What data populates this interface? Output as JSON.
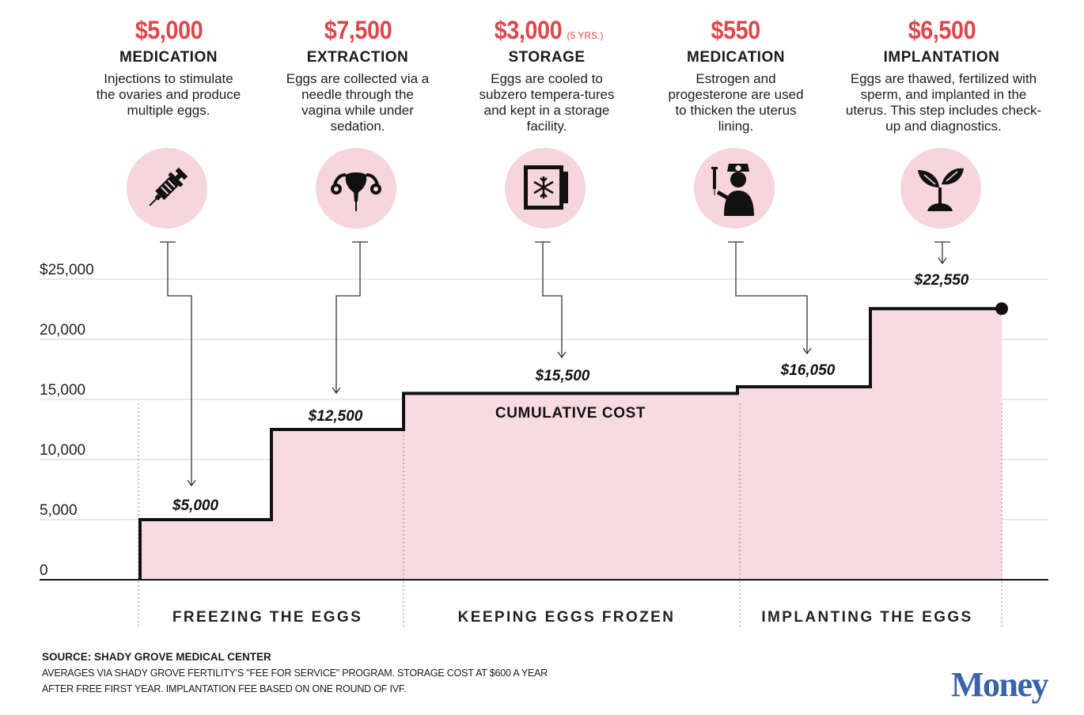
{
  "steps": [
    {
      "cost": "$5,000",
      "cost_note": "",
      "name": "MEDICATION",
      "desc": "Injections to stimulate the ovaries and produce multiple eggs.",
      "icon": "syringe-icon"
    },
    {
      "cost": "$7,500",
      "cost_note": "",
      "name": "EXTRACTION",
      "desc": "Eggs are collected via a needle through the vagina while under sedation.",
      "icon": "uterus-icon"
    },
    {
      "cost": "$3,000",
      "cost_note": "(5 YRS.)",
      "name": "STORAGE",
      "desc": "Eggs are cooled to subzero tempera-tures and kept in a storage facility.",
      "icon": "freezer-icon"
    },
    {
      "cost": "$550",
      "cost_note": "",
      "name": "MEDICATION",
      "desc": "Estrogen and progesterone are used to thicken the uterus lining.",
      "icon": "nurse-icon"
    },
    {
      "cost": "$6,500",
      "cost_note": "",
      "name": "IMPLANTATION",
      "desc": "Eggs are thawed, fertilized with sperm, and implanted in the uterus. This step includes check-up and diagnostics.",
      "icon": "sprout-icon"
    }
  ],
  "chart_data": {
    "type": "area",
    "title": "CUMULATIVE COST",
    "y_ticks": [
      "$25,000",
      "20,000",
      "15,000",
      "10,000",
      "5,000",
      "0"
    ],
    "ylim": [
      0,
      25000
    ],
    "grid": true,
    "series": [
      {
        "values": [
          5000,
          12500,
          15500,
          16050,
          22550
        ],
        "labels": [
          "$5,000",
          "$12,500",
          "$15,500",
          "$16,050",
          "$22,550"
        ]
      }
    ],
    "phases": [
      "FREEZING THE EGGS",
      "KEEPING EGGS FROZEN",
      "IMPLANTING THE EGGS"
    ],
    "colors": {
      "fill": "#f8dbe2",
      "line": "#111111",
      "grid": "#e2e2e2",
      "accent": "#e0464b"
    }
  },
  "footer": {
    "source": "SOURCE: SHADY GROVE MEDICAL CENTER",
    "note": "AVERAGES VIA SHADY GROVE FERTILITY'S \"FEE FOR SERVICE\" PROGRAM. STORAGE COST AT $600 A YEAR AFTER FREE FIRST YEAR. IMPLANTATION FEE BASED ON ONE ROUND OF IVF."
  },
  "logo": "Money"
}
